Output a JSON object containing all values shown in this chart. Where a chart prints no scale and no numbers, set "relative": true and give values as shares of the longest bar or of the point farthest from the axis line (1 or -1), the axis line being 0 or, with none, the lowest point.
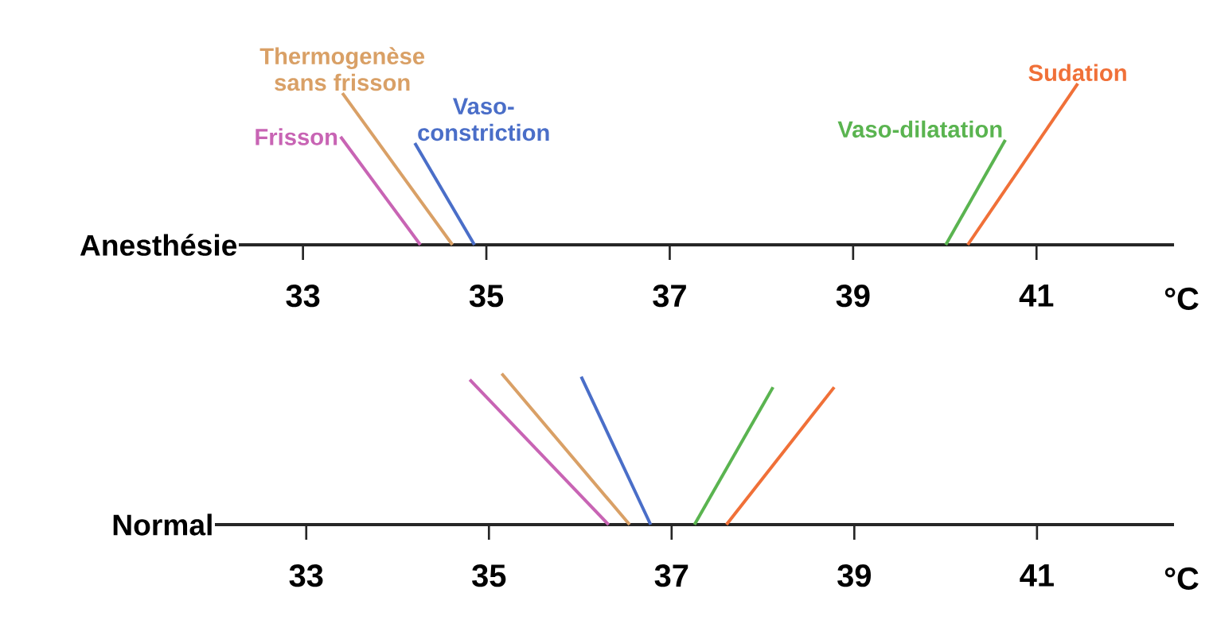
{
  "chart_data": [
    {
      "type": "line",
      "relative": true,
      "ylabel": "Anesthésie",
      "xlabel": "°C",
      "xlim": [
        32.3,
        42.5
      ],
      "xticks": [
        33,
        35,
        37,
        39,
        41
      ],
      "series": [
        {
          "name": "Frisson",
          "color": "#c864b4",
          "x": [
            34.28,
            33.41
          ],
          "values": [
            0,
            0.67
          ]
        },
        {
          "name": "Thermogenèse sans frisson",
          "color": "#d9a066",
          "x": [
            34.63,
            33.43
          ],
          "values": [
            0,
            0.94
          ]
        },
        {
          "name": "Vaso-constriction",
          "color": "#4a6ec8",
          "x": [
            34.87,
            34.22
          ],
          "values": [
            0,
            0.63
          ]
        },
        {
          "name": "Vaso-dilatation",
          "color": "#5ab450",
          "x": [
            40.01,
            40.66
          ],
          "values": [
            0,
            0.65
          ]
        },
        {
          "name": "Sudation",
          "color": "#f07038",
          "x": [
            40.25,
            41.45
          ],
          "values": [
            0,
            1
          ]
        }
      ]
    },
    {
      "type": "line",
      "relative": true,
      "ylabel": "Normal",
      "xlabel": "°C",
      "xlim": [
        32.0,
        42.5
      ],
      "xticks": [
        33,
        35,
        37,
        39,
        41
      ],
      "series": [
        {
          "color": "#c864b4",
          "x": [
            36.31,
            34.79
          ],
          "values": [
            0,
            0.96
          ]
        },
        {
          "color": "#d9a066",
          "x": [
            36.54,
            35.14
          ],
          "values": [
            0,
            1
          ]
        },
        {
          "color": "#4a6ec8",
          "x": [
            36.77,
            36.01
          ],
          "values": [
            0,
            0.98
          ]
        },
        {
          "color": "#5ab450",
          "x": [
            37.25,
            38.11
          ],
          "values": [
            0,
            0.91
          ]
        },
        {
          "color": "#f07038",
          "x": [
            37.6,
            38.78
          ],
          "values": [
            0,
            0.91
          ]
        }
      ]
    }
  ]
}
